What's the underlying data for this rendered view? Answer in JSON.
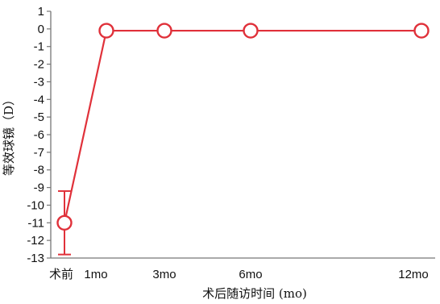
{
  "chart_data": {
    "type": "line",
    "xlabel": "术后随访时间 (mo)",
    "ylabel": "等效球镜（D）",
    "categories": [
      "术前",
      "1mo",
      "3mo",
      "6mo",
      "12mo"
    ],
    "x": [
      0,
      1,
      3,
      6,
      12
    ],
    "series": [
      {
        "values": [
          -11,
          -0.1,
          -0.1,
          -0.1,
          -0.1
        ],
        "error": [
          1.8,
          0,
          0,
          0,
          0
        ],
        "color": "#e0313a"
      }
    ],
    "yticks": [
      1,
      0,
      -1,
      -2,
      -3,
      -4,
      -5,
      -6,
      -7,
      -8,
      -9,
      -10,
      -11,
      -12,
      -13
    ],
    "ylim": [
      -13,
      1
    ],
    "grid": false,
    "legend": "none"
  }
}
